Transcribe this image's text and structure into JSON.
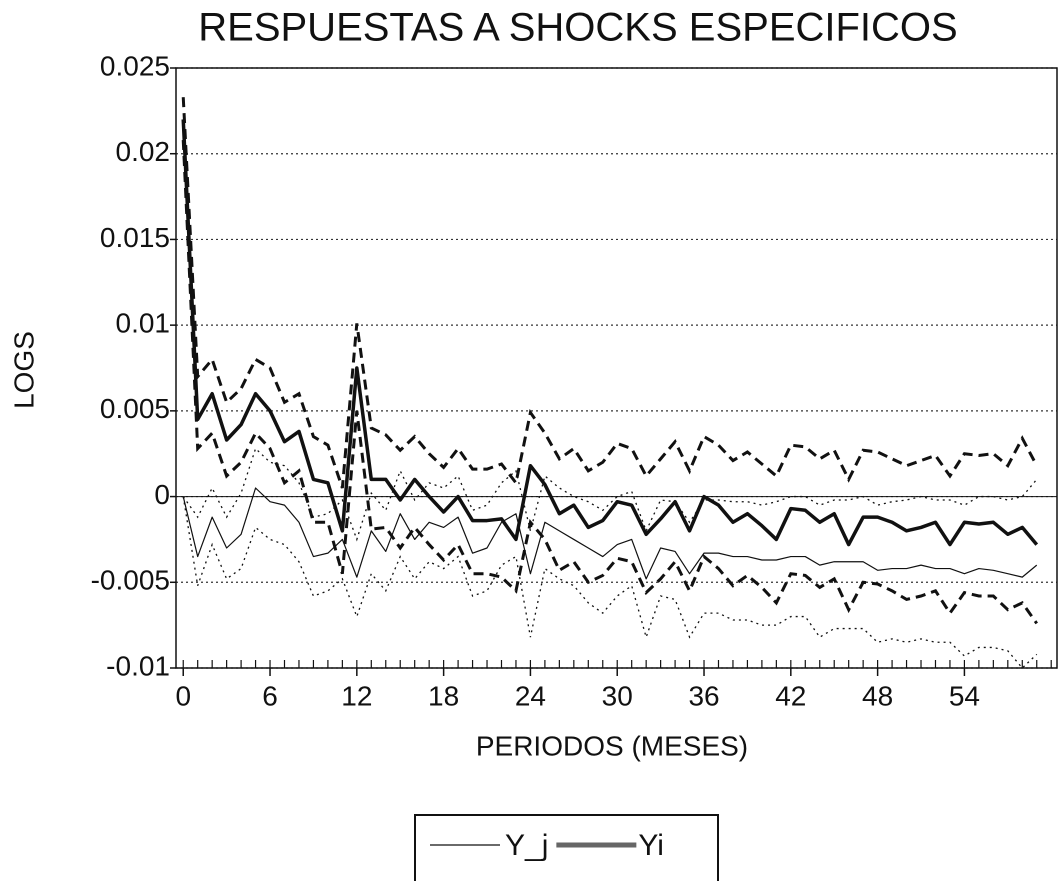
{
  "chart_data": {
    "type": "line",
    "title": "RESPUESTAS A SHOCKS ESPECIFICOS",
    "x_label": "PERIODOS (MESES)",
    "y_label": "LOGS",
    "x": [
      0,
      1,
      2,
      3,
      4,
      5,
      6,
      7,
      8,
      9,
      10,
      11,
      12,
      13,
      14,
      15,
      16,
      17,
      18,
      19,
      20,
      21,
      22,
      23,
      24,
      25,
      26,
      27,
      28,
      29,
      30,
      31,
      32,
      33,
      34,
      35,
      36,
      37,
      38,
      39,
      40,
      41,
      42,
      43,
      44,
      45,
      46,
      47,
      48,
      49,
      50,
      51,
      52,
      53,
      54,
      55,
      56,
      57,
      58,
      59
    ],
    "xlim": [
      -0.5,
      60.4
    ],
    "xticks": [
      0,
      6,
      12,
      18,
      24,
      30,
      36,
      42,
      48,
      54
    ],
    "ylim": [
      -0.01,
      0.025
    ],
    "yticks": [
      0.025,
      0.02,
      0.015,
      0.01,
      0.005,
      0,
      -0.005,
      -0.01
    ],
    "grid": true,
    "legend_position": "bottom",
    "series": [
      {
        "name": "Y_j",
        "color": "#111111",
        "width": 1.2,
        "band_dash": "dotted",
        "values": [
          0,
          -0.0035,
          -0.0012,
          -0.003,
          -0.0022,
          0.0005,
          -0.0003,
          -0.0005,
          -0.0015,
          -0.0035,
          -0.0033,
          -0.0025,
          -0.0047,
          -0.002,
          -0.0032,
          -0.001,
          -0.0025,
          -0.0015,
          -0.0018,
          -0.0012,
          -0.0033,
          -0.003,
          -0.0015,
          -0.001,
          -0.0045,
          -0.0015,
          -0.002,
          -0.0025,
          -0.003,
          -0.0035,
          -0.0028,
          -0.0025,
          -0.0048,
          -0.003,
          -0.0032,
          -0.0045,
          -0.0033,
          -0.0033,
          -0.0035,
          -0.0035,
          -0.0037,
          -0.0037,
          -0.0035,
          -0.0035,
          -0.004,
          -0.0038,
          -0.0038,
          -0.0038,
          -0.0043,
          -0.0042,
          -0.0042,
          -0.004,
          -0.0042,
          -0.0042,
          -0.0045,
          -0.0042,
          -0.0043,
          -0.0045,
          -0.0047,
          -0.004
        ],
        "upper": [
          0,
          -0.0012,
          0.0005,
          -0.0012,
          0.0002,
          0.0028,
          0.002,
          0.0018,
          0.0008,
          -0.0012,
          -0.001,
          -0.0002,
          -0.0025,
          0.0002,
          -0.0008,
          0.0015,
          -0.0002,
          0.0008,
          0.0005,
          0.0012,
          -0.0008,
          -0.0005,
          0.0008,
          0.0015,
          -0.002,
          0.0012,
          0.0005,
          0,
          -0.0003,
          -0.0008,
          0,
          0.0003,
          -0.002,
          -0.0002,
          -0.0003,
          -0.0015,
          -0.0002,
          -0.0002,
          -0.0003,
          -0.0003,
          -0.0005,
          -0.0003,
          0,
          0,
          -0.0005,
          -0.0002,
          -0.0002,
          0,
          -0.0005,
          -0.0003,
          -0.0002,
          0,
          -0.0002,
          -0.0002,
          -0.0005,
          0,
          0,
          -0.0002,
          0,
          0.001
        ],
        "lower": [
          0,
          -0.0052,
          -0.0028,
          -0.0048,
          -0.0042,
          -0.0018,
          -0.0025,
          -0.0028,
          -0.0038,
          -0.0058,
          -0.0055,
          -0.0048,
          -0.007,
          -0.0045,
          -0.0055,
          -0.0035,
          -0.0048,
          -0.0038,
          -0.0042,
          -0.0035,
          -0.0058,
          -0.0055,
          -0.004,
          -0.0035,
          -0.0082,
          -0.0042,
          -0.0048,
          -0.0052,
          -0.0062,
          -0.0068,
          -0.0058,
          -0.0052,
          -0.0082,
          -0.0058,
          -0.006,
          -0.0082,
          -0.0068,
          -0.0068,
          -0.0072,
          -0.0072,
          -0.0075,
          -0.0075,
          -0.007,
          -0.007,
          -0.0082,
          -0.0077,
          -0.0077,
          -0.0077,
          -0.0085,
          -0.0083,
          -0.0085,
          -0.0083,
          -0.0085,
          -0.0085,
          -0.0093,
          -0.0088,
          -0.0088,
          -0.009,
          -0.01,
          -0.0092
        ]
      },
      {
        "name": "Yi",
        "color": "#111111",
        "width": 3.5,
        "band_dash": "dashed",
        "values": [
          0.022,
          0.0045,
          0.006,
          0.0033,
          0.0042,
          0.006,
          0.005,
          0.0032,
          0.0038,
          0.001,
          0.0008,
          -0.002,
          0.0075,
          0.001,
          0.001,
          -0.0002,
          0.001,
          0,
          -0.0009,
          0,
          -0.0014,
          -0.0014,
          -0.0013,
          -0.0025,
          0.0018,
          0.0007,
          -0.001,
          -0.0005,
          -0.0018,
          -0.0014,
          -0.0003,
          -0.0005,
          -0.0022,
          -0.0013,
          -0.0003,
          -0.002,
          0,
          -0.0005,
          -0.0015,
          -0.001,
          -0.0017,
          -0.0025,
          -0.0007,
          -0.0008,
          -0.0015,
          -0.001,
          -0.0028,
          -0.0012,
          -0.0012,
          -0.0015,
          -0.002,
          -0.0018,
          -0.0015,
          -0.0028,
          -0.0015,
          -0.0016,
          -0.0015,
          -0.0022,
          -0.0018,
          -0.0028
        ],
        "upper": [
          0.0233,
          0.007,
          0.008,
          0.0055,
          0.0063,
          0.008,
          0.0075,
          0.0055,
          0.006,
          0.0035,
          0.003,
          0.0005,
          0.0101,
          0.004,
          0.0036,
          0.0027,
          0.0035,
          0.0025,
          0.0017,
          0.0028,
          0.0016,
          0.0016,
          0.0019,
          0.0008,
          0.0049,
          0.0037,
          0.0022,
          0.0028,
          0.0015,
          0.002,
          0.0031,
          0.0028,
          0.0012,
          0.0022,
          0.0032,
          0.0015,
          0.0035,
          0.003,
          0.0021,
          0.0026,
          0.0019,
          0.0012,
          0.003,
          0.0029,
          0.0022,
          0.0027,
          0.001,
          0.0027,
          0.0026,
          0.0022,
          0.0018,
          0.0021,
          0.0024,
          0.0012,
          0.0025,
          0.0024,
          0.0025,
          0.0018,
          0.0034,
          0.0018
        ],
        "lower": [
          0.0208,
          0.0028,
          0.0037,
          0.0012,
          0.002,
          0.0037,
          0.0028,
          0.0008,
          0.0015,
          -0.0015,
          -0.0015,
          -0.0045,
          0.005,
          -0.0019,
          -0.0018,
          -0.003,
          -0.0018,
          -0.0028,
          -0.0037,
          -0.0028,
          -0.0045,
          -0.0045,
          -0.0047,
          -0.0055,
          -0.0015,
          -0.0025,
          -0.0043,
          -0.0038,
          -0.005,
          -0.0046,
          -0.0036,
          -0.0038,
          -0.0056,
          -0.0048,
          -0.0038,
          -0.0055,
          -0.0035,
          -0.0042,
          -0.0052,
          -0.0046,
          -0.0053,
          -0.0062,
          -0.0045,
          -0.0046,
          -0.0053,
          -0.0048,
          -0.0066,
          -0.005,
          -0.0051,
          -0.0055,
          -0.006,
          -0.0058,
          -0.0055,
          -0.0068,
          -0.0056,
          -0.0058,
          -0.0058,
          -0.0066,
          -0.0062,
          -0.0074
        ]
      }
    ]
  }
}
